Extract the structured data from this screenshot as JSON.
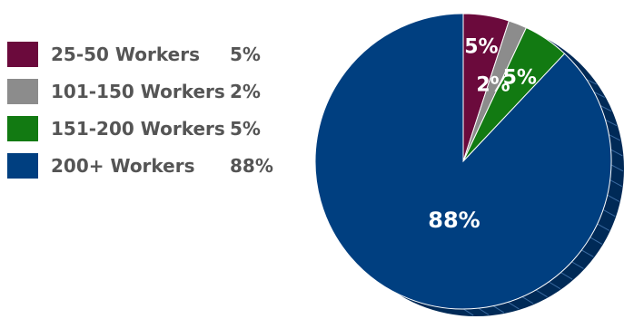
{
  "chart_data": {
    "type": "pie",
    "slices": [
      {
        "label": "25-50 Workers",
        "value": 5,
        "display": "5%",
        "color": "#6b0a3c"
      },
      {
        "label": "101-150 Workers",
        "value": 2,
        "display": "2%",
        "color": "#8c8c8c"
      },
      {
        "label": "151-200 Workers",
        "value": 5,
        "display": "5%",
        "color": "#127a12"
      },
      {
        "label": "200+ Workers",
        "value": 88,
        "display": "88%",
        "color": "#003f80"
      }
    ],
    "legend_position": "left",
    "edge_color": "#002a57"
  }
}
